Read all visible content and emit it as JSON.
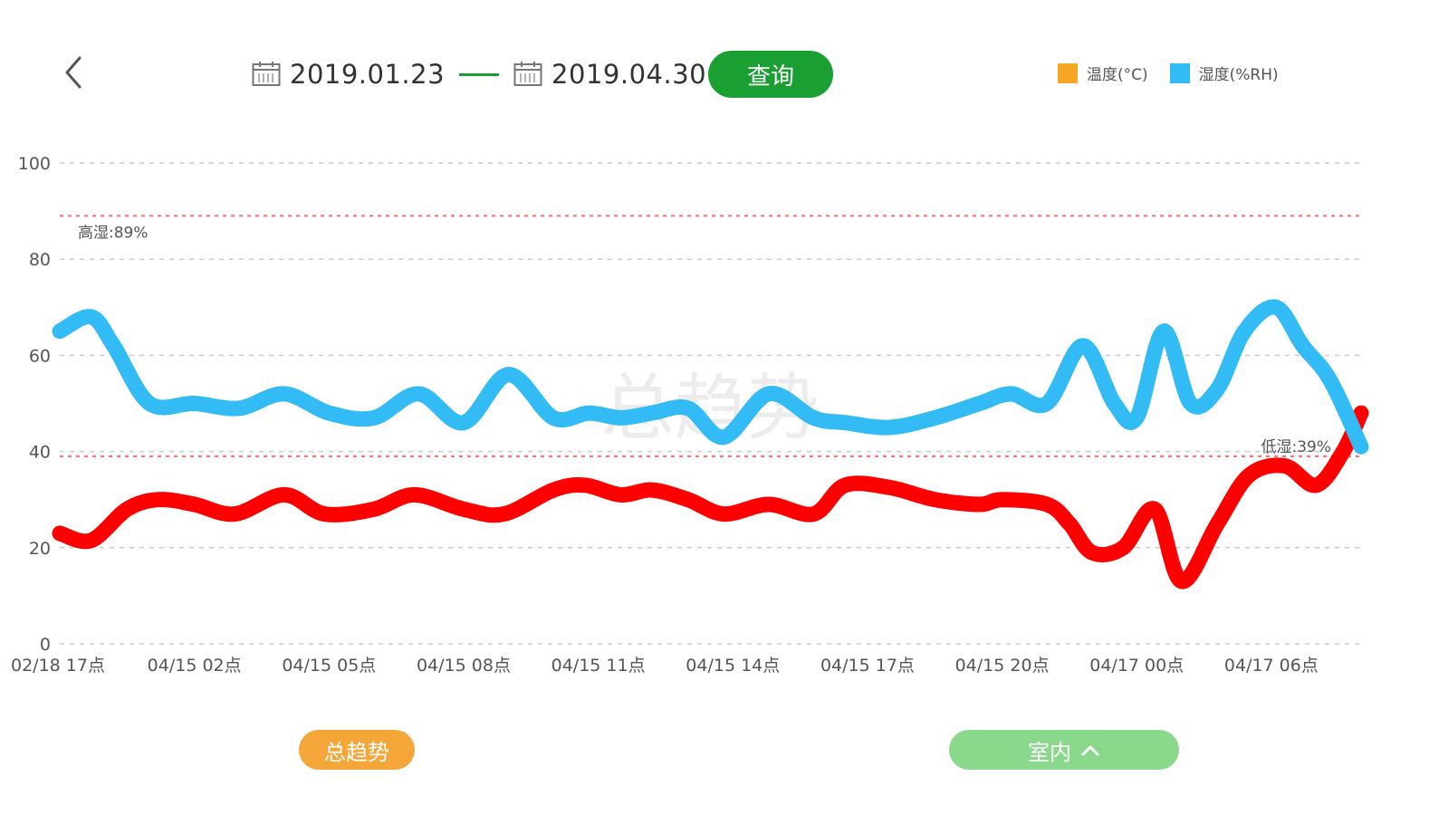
{
  "header": {
    "start_date": "2019.01.23",
    "end_date": "2019.04.30",
    "query_label": "查询"
  },
  "legend": [
    {
      "label": "温度(°C)",
      "color": "#f5a623"
    },
    {
      "label": "湿度(%RH)",
      "color": "#33bbf5"
    }
  ],
  "footer": {
    "trend_label": "总趋势",
    "room_label": "室内"
  },
  "colors": {
    "accent_green": "#1aa032",
    "light_green": "#8ad88c",
    "orange": "#f5a638",
    "temperature_line": "#ff0000",
    "humidity_line": "#33bbf5",
    "threshold": "#ff6b6b",
    "grid": "#cccccc"
  },
  "chart_data": {
    "type": "line",
    "title": "",
    "xlabel": "",
    "ylabel": "",
    "ylim": [
      0,
      100
    ],
    "yticks": [
      0,
      20,
      40,
      60,
      80,
      100
    ],
    "xlim": [
      0,
      29
    ],
    "grid": true,
    "watermark": "总趋势",
    "x_ticks": [
      {
        "pos": 0,
        "label": "02/18 17点"
      },
      {
        "pos": 3,
        "label": "04/15 02点"
      },
      {
        "pos": 6,
        "label": "04/15 05点"
      },
      {
        "pos": 9,
        "label": "04/15 08点"
      },
      {
        "pos": 12,
        "label": "04/15 11点"
      },
      {
        "pos": 15,
        "label": "04/15 14点"
      },
      {
        "pos": 18,
        "label": "04/15 17点"
      },
      {
        "pos": 21,
        "label": "04/15 20点"
      },
      {
        "pos": 24,
        "label": "04/17 00点"
      },
      {
        "pos": 27,
        "label": "04/17 06点"
      }
    ],
    "thresholds": [
      {
        "value": 89,
        "label": "高湿:89%",
        "label_anchor": "start"
      },
      {
        "value": 39,
        "label": "低湿:39%",
        "label_anchor": "end"
      }
    ],
    "series": [
      {
        "name": "温度(°C)",
        "color": "#ff0000",
        "x": [
          0,
          0.7,
          1.5,
          2.2,
          3,
          3.9,
          5,
          5.9,
          7,
          7.9,
          9,
          9.9,
          11,
          11.7,
          12.5,
          13.2,
          14,
          14.8,
          15.8,
          16.8,
          17.5,
          18.5,
          19.5,
          20.5,
          21,
          22,
          22.5,
          23,
          23.7,
          24.4,
          25,
          25.8,
          26.5,
          27.3,
          28,
          28.6,
          29
        ],
        "values": [
          23,
          21.5,
          28,
          30,
          29,
          27,
          31,
          27,
          28,
          31,
          28,
          27,
          32,
          33,
          31,
          32,
          30,
          27,
          29,
          27,
          33,
          32.5,
          30,
          29,
          30,
          29,
          25,
          19,
          20,
          28,
          13,
          25,
          35,
          37,
          33,
          40,
          48
        ]
      },
      {
        "name": "湿度(%RH)",
        "color": "#33bbf5",
        "x": [
          0,
          0.7,
          1.2,
          2,
          3,
          4,
          5,
          6,
          7,
          8,
          9,
          10,
          11,
          11.8,
          12.5,
          13.2,
          14,
          14.8,
          15.8,
          16.8,
          17.5,
          18.5,
          19.5,
          20.5,
          21.2,
          22,
          22.8,
          23.5,
          24,
          24.6,
          25.2,
          25.8,
          26.4,
          27.1,
          27.7,
          28.3,
          29
        ],
        "values": [
          65,
          68,
          62,
          50,
          50,
          49,
          52,
          48,
          47,
          52,
          46,
          56,
          47,
          48,
          47,
          48,
          49,
          43,
          52,
          47,
          46,
          45,
          47,
          50,
          52,
          50,
          62,
          50,
          47,
          65,
          50,
          53,
          65,
          70,
          62,
          55,
          41
        ]
      }
    ]
  }
}
